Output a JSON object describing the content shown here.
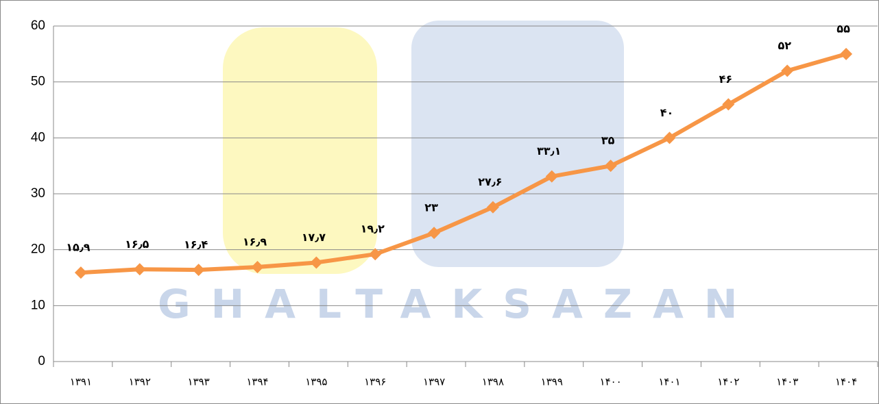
{
  "chart_data": {
    "type": "line",
    "watermark": "GHALTAKSAZAN",
    "categories": [
      "۱۳۹۱",
      "۱۳۹۲",
      "۱۳۹۳",
      "۱۳۹۴",
      "۱۳۹۵",
      "۱۳۹۶",
      "۱۳۹۷",
      "۱۳۹۸",
      "۱۳۹۹",
      "۱۴۰۰",
      "۱۴۰۱",
      "۱۴۰۲",
      "۱۴۰۳",
      "۱۴۰۴"
    ],
    "series": [
      {
        "color": "#f79646",
        "values": [
          15.9,
          16.5,
          16.4,
          16.9,
          17.7,
          19.2,
          23,
          27.6,
          33.1,
          35,
          40,
          46,
          52,
          55
        ],
        "value_labels": [
          "۱۵٫۹",
          "۱۶٫۵",
          "۱۶٫۴",
          "۱۶٫۹",
          "۱۷٫۷",
          "۱۹٫۲",
          "۲۳",
          "۲۷٫۶",
          "۳۳٫۱",
          "۳۵",
          "۴۰",
          "۴۶",
          "۵۲",
          "۵۵"
        ]
      }
    ],
    "ylim": [
      0,
      60
    ],
    "yticks": [
      0,
      10,
      20,
      30,
      40,
      50,
      60
    ],
    "grid": true
  }
}
